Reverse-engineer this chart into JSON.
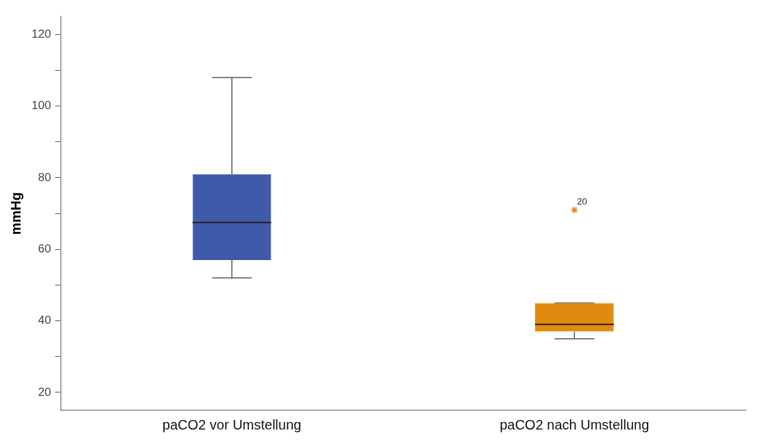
{
  "chart_data": {
    "type": "box",
    "ylabel": "mmHg",
    "categories": [
      "paCO2 vor Umstellung",
      "paCO2 nach Umstellung"
    ],
    "colors": [
      "#3f5aa8",
      "#e08a10"
    ],
    "boxes": [
      {
        "low": 52,
        "q1": 57,
        "median": 67.5,
        "q3": 81,
        "high": 108
      },
      {
        "low": 35,
        "q1": 37,
        "median": 39,
        "q3": 45,
        "high": 45,
        "outliers": [
          71
        ]
      }
    ],
    "ylim": [
      15,
      125
    ],
    "yticks": [
      20,
      {
        "value": 30,
        "label": null
      },
      40,
      {
        "value": 50,
        "label": null
      },
      60,
      {
        "value": 70,
        "label": null
      },
      80,
      {
        "value": 90,
        "label": null
      },
      100,
      {
        "value": 110,
        "label": null
      },
      120
    ],
    "annotations": [
      "20"
    ],
    "grid": false,
    "legend": false
  }
}
